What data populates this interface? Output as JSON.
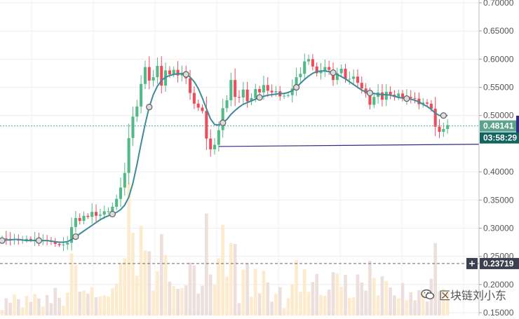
{
  "chart_data": {
    "type": "candlestick",
    "title": "",
    "xlabel": "",
    "ylabel": "",
    "ylim": [
      0.145,
      0.705
    ],
    "y_ticks": [
      "0.70000",
      "0.65000",
      "0.60000",
      "0.55000",
      "0.50000",
      "0.40000",
      "0.35000",
      "0.30000",
      "0.25000",
      "0.20000",
      "0.15000"
    ],
    "y_tick_values": [
      0.7,
      0.65,
      0.6,
      0.55,
      0.5,
      0.4,
      0.35,
      0.3,
      0.25,
      0.2,
      0.15
    ],
    "grid": true,
    "colors": {
      "up": "#53b987",
      "down": "#eb4d5c",
      "ma": "#3d8c99",
      "support": "#2c2c8c",
      "price": "#5da28f",
      "timer": "#12655e",
      "ref": "#3b3f50"
    },
    "price_marker": {
      "label": "0.48141",
      "value": 0.48141
    },
    "countdown": {
      "label": "03:58:29"
    },
    "reference_line": {
      "label": "0.23719",
      "value": 0.23719
    },
    "support_line": {
      "start": 0.445,
      "end": 0.449
    },
    "closes": [
      0.282,
      0.281,
      0.279,
      0.28,
      0.278,
      0.279,
      0.281,
      0.279,
      0.28,
      0.278,
      0.279,
      0.277,
      0.276,
      0.272,
      0.27,
      0.271,
      0.274,
      0.302,
      0.318,
      0.313,
      0.322,
      0.32,
      0.329,
      0.322,
      0.324,
      0.33,
      0.33,
      0.338,
      0.352,
      0.372,
      0.398,
      0.46,
      0.498,
      0.516,
      0.556,
      0.586,
      0.562,
      0.568,
      0.588,
      0.553,
      0.58,
      0.573,
      0.581,
      0.571,
      0.576,
      0.566,
      0.54,
      0.521,
      0.514,
      0.508,
      0.459,
      0.44,
      0.448,
      0.474,
      0.513,
      0.527,
      0.563,
      0.533,
      0.532,
      0.546,
      0.525,
      0.531,
      0.547,
      0.541,
      0.554,
      0.544,
      0.541,
      0.543,
      0.534,
      0.535,
      0.536,
      0.548,
      0.568,
      0.574,
      0.596,
      0.6,
      0.587,
      0.575,
      0.579,
      0.586,
      0.581,
      0.563,
      0.575,
      0.583,
      0.565,
      0.565,
      0.569,
      0.558,
      0.548,
      0.539,
      0.519,
      0.533,
      0.541,
      0.528,
      0.542,
      0.537,
      0.533,
      0.539,
      0.53,
      0.533,
      0.531,
      0.53,
      0.52,
      0.523,
      0.521,
      0.512,
      0.48,
      0.471,
      0.476,
      0.483
    ],
    "ma": [
      0.278,
      0.279,
      0.279,
      0.28,
      0.28,
      0.279,
      0.278,
      0.278,
      0.278,
      0.278,
      0.278,
      0.278,
      0.277,
      0.276,
      0.275,
      0.275,
      0.276,
      0.28,
      0.285,
      0.29,
      0.295,
      0.3,
      0.305,
      0.31,
      0.315,
      0.319,
      0.322,
      0.325,
      0.328,
      0.333,
      0.341,
      0.355,
      0.38,
      0.413,
      0.45,
      0.485,
      0.515,
      0.537,
      0.552,
      0.562,
      0.568,
      0.571,
      0.573,
      0.574,
      0.574,
      0.573,
      0.568,
      0.56,
      0.548,
      0.531,
      0.512,
      0.494,
      0.484,
      0.483,
      0.487,
      0.493,
      0.502,
      0.509,
      0.515,
      0.52,
      0.523,
      0.526,
      0.529,
      0.532,
      0.534,
      0.536,
      0.537,
      0.538,
      0.539,
      0.539,
      0.541,
      0.544,
      0.55,
      0.557,
      0.564,
      0.57,
      0.575,
      0.578,
      0.579,
      0.579,
      0.578,
      0.576,
      0.573,
      0.569,
      0.565,
      0.56,
      0.555,
      0.55,
      0.545,
      0.542,
      0.54,
      0.539,
      0.538,
      0.537,
      0.537,
      0.536,
      0.534,
      0.532,
      0.531,
      0.53,
      0.529,
      0.527,
      0.524,
      0.52,
      0.516,
      0.511,
      0.504,
      0.5,
      0.5,
      0.5
    ]
  },
  "watermark": {
    "text": "区块链刘小东",
    "icon": "wechat-bubble-icon"
  }
}
